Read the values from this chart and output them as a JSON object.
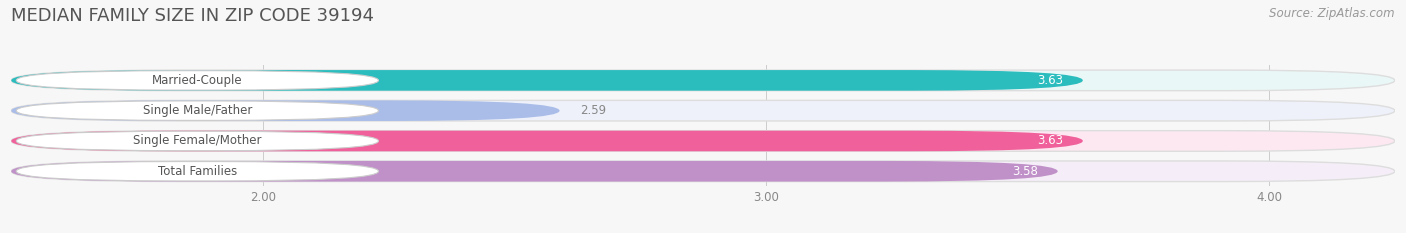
{
  "title": "MEDIAN FAMILY SIZE IN ZIP CODE 39194",
  "source": "Source: ZipAtlas.com",
  "categories": [
    "Married-Couple",
    "Single Male/Father",
    "Single Female/Mother",
    "Total Families"
  ],
  "values": [
    3.63,
    2.59,
    3.63,
    3.58
  ],
  "bar_colors": [
    "#2BBCBE",
    "#AABDE8",
    "#F0609A",
    "#C090C8"
  ],
  "bar_bg_colors": [
    "#EAF7F7",
    "#EEF1FA",
    "#FDE8F2",
    "#F5EEF8"
  ],
  "label_text_color": "#555555",
  "value_inside": [
    true,
    false,
    true,
    true
  ],
  "value_colors_inside": [
    "#ffffff",
    "#888888",
    "#ffffff",
    "#ffffff"
  ],
  "xlim": [
    1.5,
    4.25
  ],
  "xticks": [
    2.0,
    3.0,
    4.0
  ],
  "xtick_labels": [
    "2.00",
    "3.00",
    "4.00"
  ],
  "title_fontsize": 13,
  "source_fontsize": 8.5,
  "bar_label_fontsize": 8.5,
  "value_fontsize": 8.5,
  "tick_fontsize": 8.5,
  "background_color": "#f7f7f7",
  "bar_height": 0.68,
  "bar_gap": 0.08
}
